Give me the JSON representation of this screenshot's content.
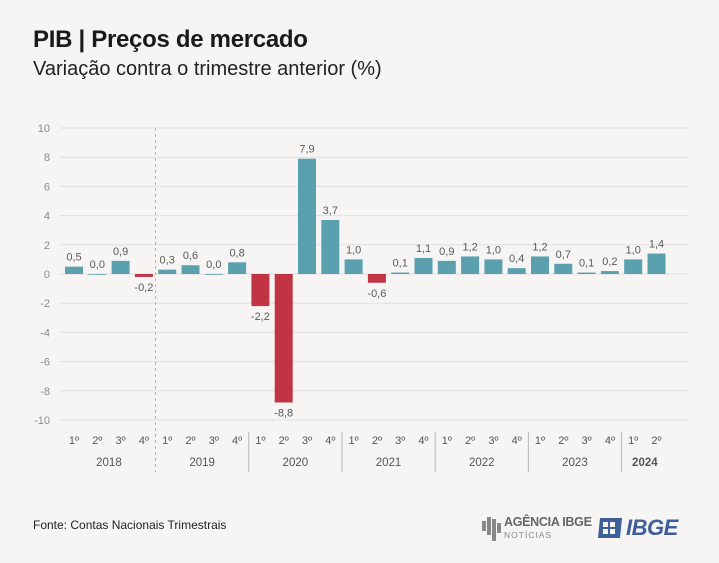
{
  "header": {
    "title": "PIB | Preços de mercado",
    "subtitle": "Variação contra o trimestre anterior (%)"
  },
  "footer": {
    "source": "Fonte: Contas Nacionais Trimestrais",
    "agencia_logo_text": "AGÊNCIA IBGE",
    "agencia_logo_sub": "NOTÍCIAS",
    "ibge_logo_text": "IBGE"
  },
  "colors": {
    "positive": "#5aa0ae",
    "negative": "#c03444",
    "grid": "#e1e0dd",
    "text": "#555555",
    "label": "#5a5a5a"
  },
  "chart_data": {
    "type": "bar",
    "title": "PIB | Preços de mercado",
    "subtitle": "Variação contra o trimestre anterior (%)",
    "ylim": [
      -10,
      10
    ],
    "yticks": [
      10,
      8,
      6,
      4,
      2,
      0,
      -2,
      -4,
      -6,
      -8,
      -10
    ],
    "grid": true,
    "categories": [
      "1º",
      "2º",
      "3º",
      "4º",
      "1º",
      "2º",
      "3º",
      "4º",
      "1º",
      "2º",
      "3º",
      "4º",
      "1º",
      "2º",
      "3º",
      "4º",
      "1º",
      "2º",
      "3º",
      "4º",
      "1º",
      "2º",
      "3º",
      "4º",
      "1º",
      "2º"
    ],
    "values": [
      0.5,
      0.0,
      0.9,
      -0.2,
      0.3,
      0.6,
      0.0,
      0.8,
      -2.2,
      -8.8,
      7.9,
      3.7,
      1.0,
      -0.6,
      0.1,
      1.1,
      0.9,
      1.2,
      1.0,
      0.4,
      1.2,
      0.7,
      0.1,
      0.2,
      1.0,
      1.4
    ],
    "value_labels": [
      "0,5",
      "0,0",
      "0,9",
      "-0,2",
      "0,3",
      "0,6",
      "0,0",
      "0,8",
      "-2,2",
      "-8,8",
      "7,9",
      "3,7",
      "1,0",
      "-0,6",
      "0,1",
      "1,1",
      "0,9",
      "1,2",
      "1,0",
      "0,4",
      "1,2",
      "0,7",
      "0,1",
      "0,2",
      "1,0",
      "1,4"
    ],
    "years": [
      {
        "label": "2018",
        "quarters": 4,
        "bold": false
      },
      {
        "label": "2019",
        "quarters": 4,
        "bold": false
      },
      {
        "label": "2020",
        "quarters": 4,
        "bold": false
      },
      {
        "label": "2021",
        "quarters": 4,
        "bold": false
      },
      {
        "label": "2022",
        "quarters": 4,
        "bold": false
      },
      {
        "label": "2023",
        "quarters": 4,
        "bold": false
      },
      {
        "label": "2024",
        "quarters": 2,
        "bold": true
      }
    ]
  }
}
